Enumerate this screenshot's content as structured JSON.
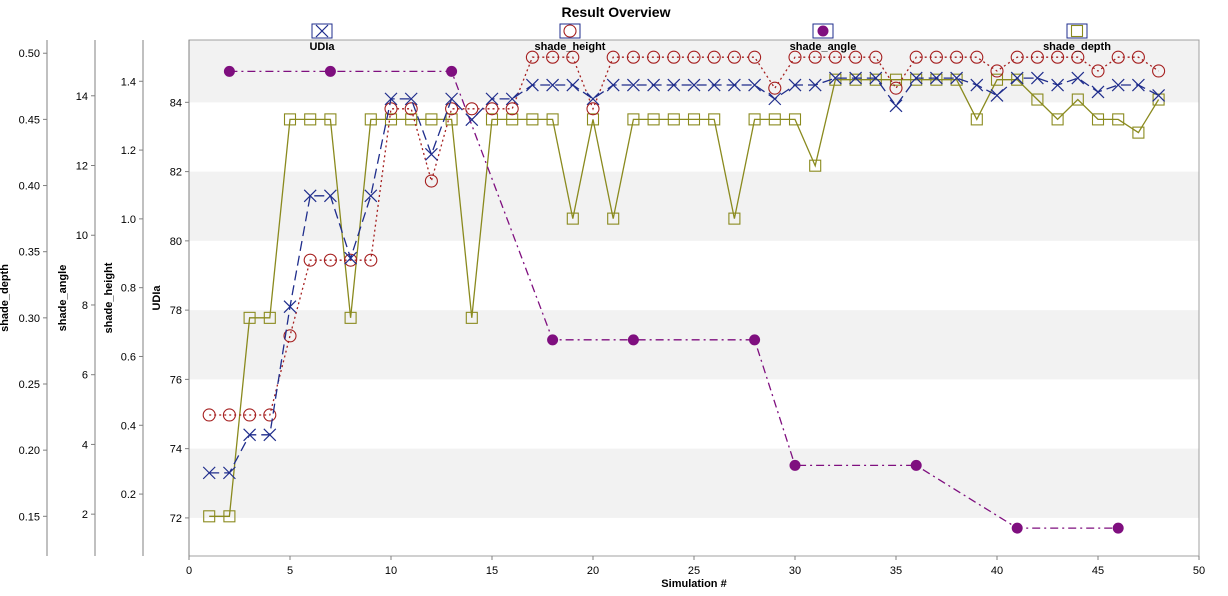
{
  "chart_data": {
    "type": "line",
    "title": "Result Overview",
    "xlabel": "Simulation #",
    "xlim": [
      0,
      50
    ],
    "x_ticks": [
      0,
      5,
      10,
      15,
      20,
      25,
      30,
      35,
      40,
      45,
      50
    ],
    "grid": "horizontal bands",
    "legend_position": "top",
    "axes": {
      "udla": {
        "label": "UDIa",
        "range": [
          70.9,
          85.8
        ],
        "ticks": [
          72,
          74,
          76,
          78,
          80,
          82,
          84
        ]
      },
      "shade_height": {
        "label": "shade_height",
        "range": [
          0.02,
          1.52
        ],
        "ticks": [
          "0.2",
          "0.4",
          "0.6",
          "0.8",
          "1.0",
          "1.2",
          "1.4"
        ]
      },
      "shade_angle": {
        "label": "shade_angle",
        "range": [
          0.8,
          15.6
        ],
        "ticks": [
          2,
          4,
          6,
          8,
          10,
          12,
          14
        ]
      },
      "shade_depth": {
        "label": "shade_depth",
        "range": [
          0.12,
          0.51
        ],
        "ticks": [
          "0.15",
          "0.20",
          "0.25",
          "0.30",
          "0.35",
          "0.40",
          "0.45",
          "0.50"
        ]
      }
    },
    "series": [
      {
        "name": "UDIa",
        "axis": "udla",
        "color": "#1f2d8c",
        "marker": "x",
        "dash": "dash",
        "x": [
          1,
          2,
          3,
          4,
          5,
          6,
          7,
          8,
          9,
          10,
          11,
          12,
          13,
          14,
          15,
          16,
          17,
          18,
          19,
          20,
          21,
          22,
          23,
          24,
          25,
          26,
          27,
          28,
          29,
          30,
          31,
          32,
          33,
          34,
          35,
          36,
          37,
          38,
          39,
          40,
          41,
          42,
          43,
          44,
          45,
          46,
          47,
          48
        ],
        "y": [
          73.3,
          73.3,
          74.4,
          74.4,
          78.1,
          81.3,
          81.3,
          79.5,
          81.3,
          84.1,
          84.1,
          82.5,
          84.1,
          83.5,
          84.1,
          84.1,
          84.5,
          84.5,
          84.5,
          84.1,
          84.5,
          84.5,
          84.5,
          84.5,
          84.5,
          84.5,
          84.5,
          84.5,
          84.1,
          84.5,
          84.5,
          84.7,
          84.7,
          84.7,
          83.9,
          84.7,
          84.7,
          84.7,
          84.5,
          84.2,
          84.7,
          84.7,
          84.5,
          84.7,
          84.3,
          84.5,
          84.5,
          84.2
        ]
      },
      {
        "name": "shade_height",
        "axis": "shade_height",
        "color": "#a51f1f",
        "marker": "circle",
        "dash": "dot",
        "x": [
          1,
          2,
          3,
          4,
          5,
          6,
          7,
          8,
          9,
          10,
          11,
          12,
          13,
          14,
          15,
          16,
          17,
          18,
          19,
          20,
          21,
          22,
          23,
          24,
          25,
          26,
          27,
          28,
          29,
          30,
          31,
          32,
          33,
          34,
          35,
          36,
          37,
          38,
          39,
          40,
          41,
          42,
          43,
          44,
          45,
          46,
          47,
          48
        ],
        "y": [
          0.43,
          0.43,
          0.43,
          0.43,
          0.66,
          0.88,
          0.88,
          0.88,
          0.88,
          1.32,
          1.32,
          1.11,
          1.32,
          1.32,
          1.32,
          1.32,
          1.47,
          1.47,
          1.47,
          1.32,
          1.47,
          1.47,
          1.47,
          1.47,
          1.47,
          1.47,
          1.47,
          1.47,
          1.38,
          1.47,
          1.47,
          1.47,
          1.47,
          1.47,
          1.38,
          1.47,
          1.47,
          1.47,
          1.47,
          1.43,
          1.47,
          1.47,
          1.47,
          1.47,
          1.43,
          1.47,
          1.47,
          1.43
        ]
      },
      {
        "name": "shade_angle",
        "axis": "shade_angle",
        "color": "#7f0f7f",
        "marker": "dot",
        "dash": "dashdot",
        "x": [
          2,
          7,
          13,
          18,
          22,
          28,
          30,
          36,
          41,
          46
        ],
        "y": [
          14.7,
          14.7,
          14.7,
          7.0,
          7.0,
          7.0,
          3.4,
          3.4,
          1.6,
          1.6
        ]
      },
      {
        "name": "shade_depth",
        "axis": "shade_depth",
        "color": "#8a8a1e",
        "marker": "square",
        "dash": "solid",
        "x": [
          1,
          2,
          3,
          4,
          5,
          6,
          7,
          8,
          9,
          10,
          11,
          12,
          13,
          14,
          15,
          16,
          17,
          18,
          19,
          20,
          21,
          22,
          23,
          24,
          25,
          26,
          27,
          28,
          29,
          30,
          31,
          32,
          33,
          34,
          35,
          36,
          37,
          38,
          39,
          40,
          41,
          42,
          43,
          44,
          45,
          46,
          47,
          48
        ],
        "y": [
          0.15,
          0.15,
          0.3,
          0.3,
          0.45,
          0.45,
          0.45,
          0.3,
          0.45,
          0.45,
          0.45,
          0.45,
          0.45,
          0.3,
          0.45,
          0.45,
          0.45,
          0.45,
          0.375,
          0.45,
          0.375,
          0.45,
          0.45,
          0.45,
          0.45,
          0.45,
          0.375,
          0.45,
          0.45,
          0.45,
          0.415,
          0.48,
          0.48,
          0.48,
          0.48,
          0.48,
          0.48,
          0.48,
          0.45,
          0.48,
          0.48,
          0.465,
          0.45,
          0.465,
          0.45,
          0.45,
          0.44,
          0.465
        ]
      }
    ]
  }
}
